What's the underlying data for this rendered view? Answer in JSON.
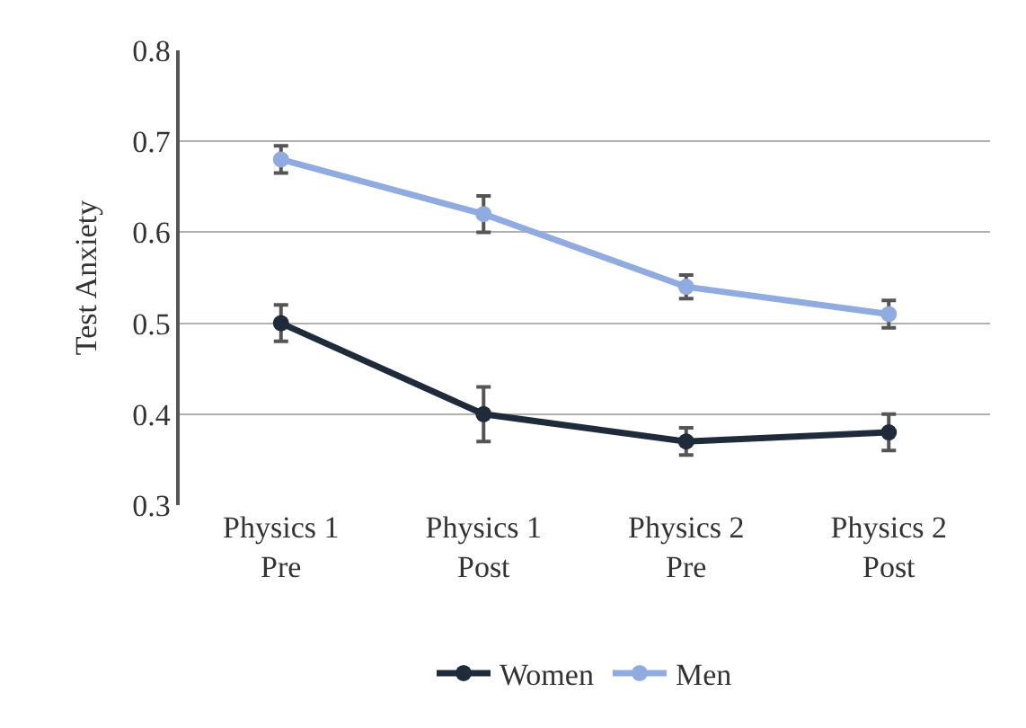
{
  "chart_data": {
    "type": "line",
    "ylabel": "Test Anxiety",
    "categories": [
      "Physics 1\nPre",
      "Physics 1\nPost",
      "Physics 2\nPre",
      "Physics 2\nPost"
    ],
    "series": [
      {
        "name": "Women",
        "color": "#1f2a3a",
        "values": [
          0.5,
          0.4,
          0.37,
          0.38
        ],
        "errors": [
          0.02,
          0.03,
          0.015,
          0.02
        ]
      },
      {
        "name": "Men",
        "color": "#8fabe0",
        "values": [
          0.68,
          0.62,
          0.54,
          0.51
        ],
        "errors": [
          0.015,
          0.02,
          0.013,
          0.015
        ]
      }
    ],
    "ylim": [
      0.3,
      0.8
    ],
    "yticks": [
      0.3,
      0.4,
      0.5,
      0.6,
      0.7,
      0.8
    ],
    "grid": "y",
    "legend": "bottom",
    "marker": "circle",
    "line_style": "solid"
  }
}
